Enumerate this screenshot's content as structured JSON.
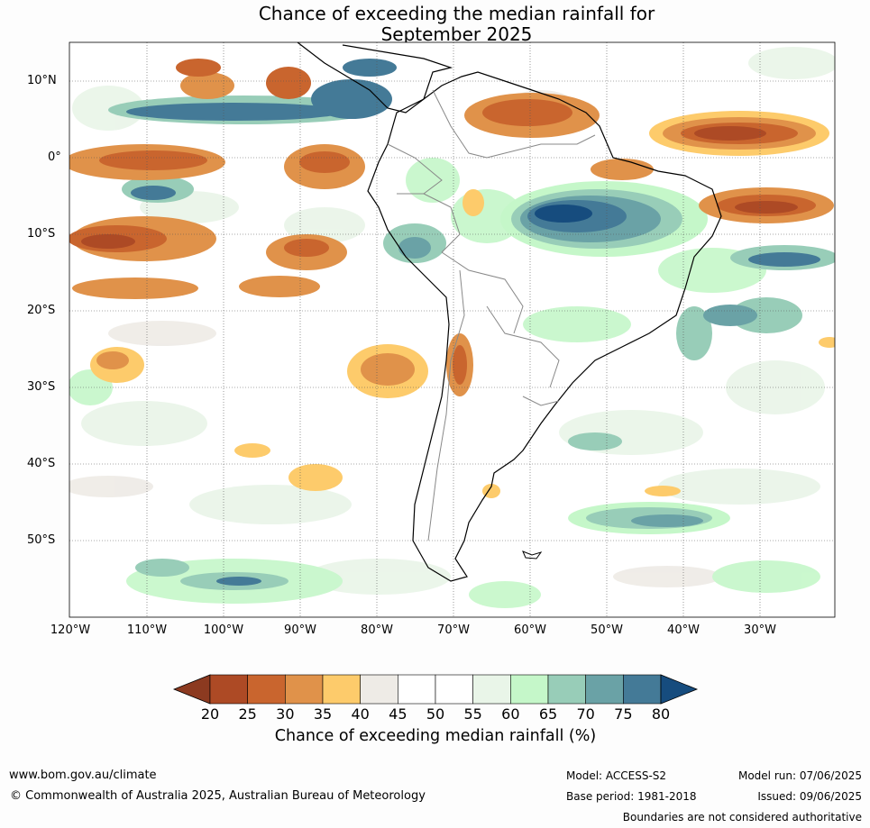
{
  "title": {
    "line1": "Chance of exceeding the median rainfall for",
    "line2": "September 2025"
  },
  "map": {
    "region": "South America",
    "lat_labels": [
      "10°N",
      "0°",
      "10°S",
      "20°S",
      "30°S",
      "40°S",
      "50°S"
    ],
    "lon_labels": [
      "120°W",
      "110°W",
      "100°W",
      "90°W",
      "80°W",
      "70°W",
      "60°W",
      "50°W",
      "40°W",
      "30°W"
    ],
    "features": [
      {
        "name": "strong-wet-signal-central-brazil",
        "probability_range": "75-80+"
      },
      {
        "name": "wet-band-eastern-pacific-north",
        "probability_range": "70-80"
      },
      {
        "name": "dry-band-equatorial-atlantic",
        "probability_range": "20-35"
      },
      {
        "name": "dry-band-northern-south-america",
        "probability_range": "20-35"
      },
      {
        "name": "dry-band-tropical-pacific-south",
        "probability_range": "20-35"
      },
      {
        "name": "wet-band-southern-atlantic",
        "probability_range": "65-75"
      }
    ]
  },
  "colorbar": {
    "ticks": [
      "20",
      "25",
      "30",
      "35",
      "40",
      "45",
      "50",
      "55",
      "60",
      "65",
      "70",
      "75",
      "80"
    ],
    "colors": [
      "#ad4a25",
      "#c9652e",
      "#e0924a",
      "#fdcb6b",
      "#eeebe6",
      "#ffffff",
      "#ffffff",
      "#e9f5e8",
      "#c5f7c9",
      "#98cdb8",
      "#6aa2a6",
      "#447a97"
    ],
    "low_extend_color": "#8c3a20",
    "high_extend_color": "#164c7e",
    "label": "Chance of exceeding median rainfall (%)"
  },
  "footer": {
    "website": "www.bom.gov.au/climate",
    "copyright": "© Commonwealth of Australia 2025, Australian Bureau of Meteorology",
    "model": "Model: ACCESS-S2",
    "base_period": "Base period: 1981-2018",
    "model_run": "Model run: 07/06/2025",
    "issued": "Issued: 09/06/2025",
    "disclaimer": "Boundaries are not considered authoritative"
  }
}
